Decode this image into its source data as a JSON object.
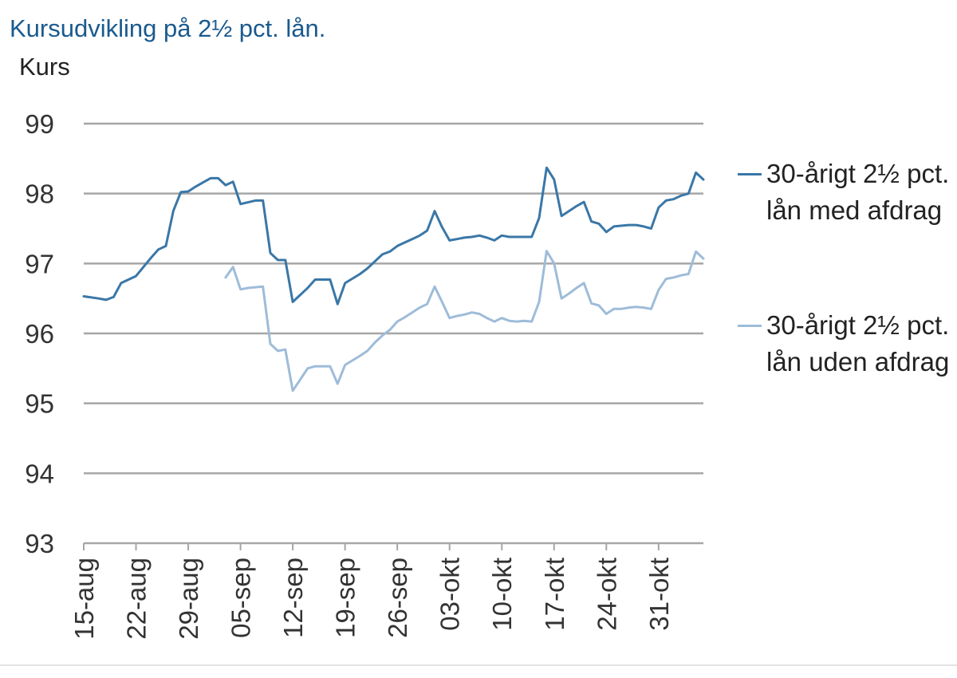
{
  "colors": {
    "title": "#1a5a8e",
    "series_dark": "#3a77a7",
    "series_light": "#9ebcd9",
    "grid": "#a6a6a6",
    "axis_text": "#333333"
  },
  "chart_data": {
    "type": "line",
    "title": "Kursudvikling på 2½ pct. lån.",
    "ylabel": "Kurs",
    "xlabel": "",
    "ylim": [
      93,
      99
    ],
    "yticks": [
      93,
      94,
      95,
      96,
      97,
      98,
      99
    ],
    "xlim": [
      0,
      83
    ],
    "x_ticks": [
      {
        "label": "15-aug",
        "x": 0
      },
      {
        "label": "22-aug",
        "x": 7
      },
      {
        "label": "29-aug",
        "x": 14
      },
      {
        "label": "05-sep",
        "x": 21
      },
      {
        "label": "12-sep",
        "x": 28
      },
      {
        "label": "19-sep",
        "x": 35
      },
      {
        "label": "26-sep",
        "x": 42
      },
      {
        "label": "03-okt",
        "x": 49
      },
      {
        "label": "10-okt",
        "x": 56
      },
      {
        "label": "17-okt",
        "x": 63
      },
      {
        "label": "24-okt",
        "x": 70
      },
      {
        "label": "31-okt",
        "x": 77
      }
    ],
    "grid": true,
    "legend_position": "right",
    "series": [
      {
        "name": "30-årigt 2½ pct. lån med afdrag",
        "color_key": "series_dark",
        "points": [
          [
            0,
            96.53
          ],
          [
            2,
            96.5
          ],
          [
            3,
            96.48
          ],
          [
            4,
            96.52
          ],
          [
            5,
            96.72
          ],
          [
            7,
            96.82
          ],
          [
            8,
            96.95
          ],
          [
            9,
            97.08
          ],
          [
            10,
            97.2
          ],
          [
            11,
            97.25
          ],
          [
            12,
            97.75
          ],
          [
            13,
            98.02
          ],
          [
            14,
            98.03
          ],
          [
            15,
            98.1
          ],
          [
            16,
            98.16
          ],
          [
            17,
            98.22
          ],
          [
            18,
            98.22
          ],
          [
            19,
            98.12
          ],
          [
            20,
            98.17
          ],
          [
            21,
            97.85
          ],
          [
            23,
            97.9
          ],
          [
            24,
            97.9
          ],
          [
            25,
            97.15
          ],
          [
            26,
            97.05
          ],
          [
            27,
            97.05
          ],
          [
            28,
            96.45
          ],
          [
            30,
            96.65
          ],
          [
            31,
            96.77
          ],
          [
            32,
            96.77
          ],
          [
            33,
            96.77
          ],
          [
            34,
            96.42
          ],
          [
            35,
            96.72
          ],
          [
            37,
            96.85
          ],
          [
            38,
            96.93
          ],
          [
            39,
            97.03
          ],
          [
            40,
            97.13
          ],
          [
            41,
            97.17
          ],
          [
            42,
            97.25
          ],
          [
            43,
            97.3
          ],
          [
            44,
            97.35
          ],
          [
            45,
            97.4
          ],
          [
            46,
            97.47
          ],
          [
            47,
            97.75
          ],
          [
            48,
            97.52
          ],
          [
            49,
            97.33
          ],
          [
            50,
            97.35
          ],
          [
            51,
            97.37
          ],
          [
            52,
            97.38
          ],
          [
            53,
            97.4
          ],
          [
            54,
            97.37
          ],
          [
            55,
            97.33
          ],
          [
            56,
            97.4
          ],
          [
            57,
            97.38
          ],
          [
            58,
            97.38
          ],
          [
            59,
            97.38
          ],
          [
            60,
            97.38
          ],
          [
            61,
            97.65
          ],
          [
            62,
            98.37
          ],
          [
            63,
            98.2
          ],
          [
            64,
            97.68
          ],
          [
            65,
            97.75
          ],
          [
            66,
            97.82
          ],
          [
            67,
            97.88
          ],
          [
            68,
            97.6
          ],
          [
            69,
            97.57
          ],
          [
            70,
            97.45
          ],
          [
            71,
            97.53
          ],
          [
            72,
            97.54
          ],
          [
            73,
            97.55
          ],
          [
            74,
            97.55
          ],
          [
            75,
            97.53
          ],
          [
            76,
            97.5
          ],
          [
            77,
            97.8
          ],
          [
            78,
            97.9
          ],
          [
            79,
            97.92
          ],
          [
            80,
            97.97
          ],
          [
            81,
            98.0
          ],
          [
            82,
            98.3
          ],
          [
            83,
            98.2
          ]
        ]
      },
      {
        "name": "30-årigt 2½ pct. lån uden afdrag",
        "color_key": "series_light",
        "points": [
          [
            19,
            96.8
          ],
          [
            20,
            96.95
          ],
          [
            21,
            96.63
          ],
          [
            22,
            96.65
          ],
          [
            24,
            96.67
          ],
          [
            25,
            95.85
          ],
          [
            26,
            95.75
          ],
          [
            27,
            95.77
          ],
          [
            28,
            95.18
          ],
          [
            30,
            95.5
          ],
          [
            31,
            95.53
          ],
          [
            32,
            95.53
          ],
          [
            33,
            95.53
          ],
          [
            34,
            95.28
          ],
          [
            35,
            95.55
          ],
          [
            37,
            95.68
          ],
          [
            38,
            95.75
          ],
          [
            39,
            95.87
          ],
          [
            40,
            95.97
          ],
          [
            41,
            96.05
          ],
          [
            42,
            96.17
          ],
          [
            43,
            96.23
          ],
          [
            44,
            96.3
          ],
          [
            45,
            96.37
          ],
          [
            46,
            96.42
          ],
          [
            47,
            96.67
          ],
          [
            48,
            96.45
          ],
          [
            49,
            96.22
          ],
          [
            50,
            96.25
          ],
          [
            51,
            96.27
          ],
          [
            52,
            96.3
          ],
          [
            53,
            96.28
          ],
          [
            54,
            96.22
          ],
          [
            55,
            96.17
          ],
          [
            56,
            96.22
          ],
          [
            57,
            96.18
          ],
          [
            58,
            96.17
          ],
          [
            59,
            96.18
          ],
          [
            60,
            96.17
          ],
          [
            61,
            96.45
          ],
          [
            62,
            97.18
          ],
          [
            63,
            97.0
          ],
          [
            64,
            96.5
          ],
          [
            65,
            96.57
          ],
          [
            66,
            96.65
          ],
          [
            67,
            96.72
          ],
          [
            68,
            96.43
          ],
          [
            69,
            96.4
          ],
          [
            70,
            96.28
          ],
          [
            71,
            96.35
          ],
          [
            72,
            96.35
          ],
          [
            73,
            96.37
          ],
          [
            74,
            96.38
          ],
          [
            75,
            96.37
          ],
          [
            76,
            96.35
          ],
          [
            77,
            96.62
          ],
          [
            78,
            96.78
          ],
          [
            79,
            96.8
          ],
          [
            80,
            96.83
          ],
          [
            81,
            96.85
          ],
          [
            82,
            97.17
          ],
          [
            83,
            97.07
          ]
        ]
      }
    ]
  }
}
